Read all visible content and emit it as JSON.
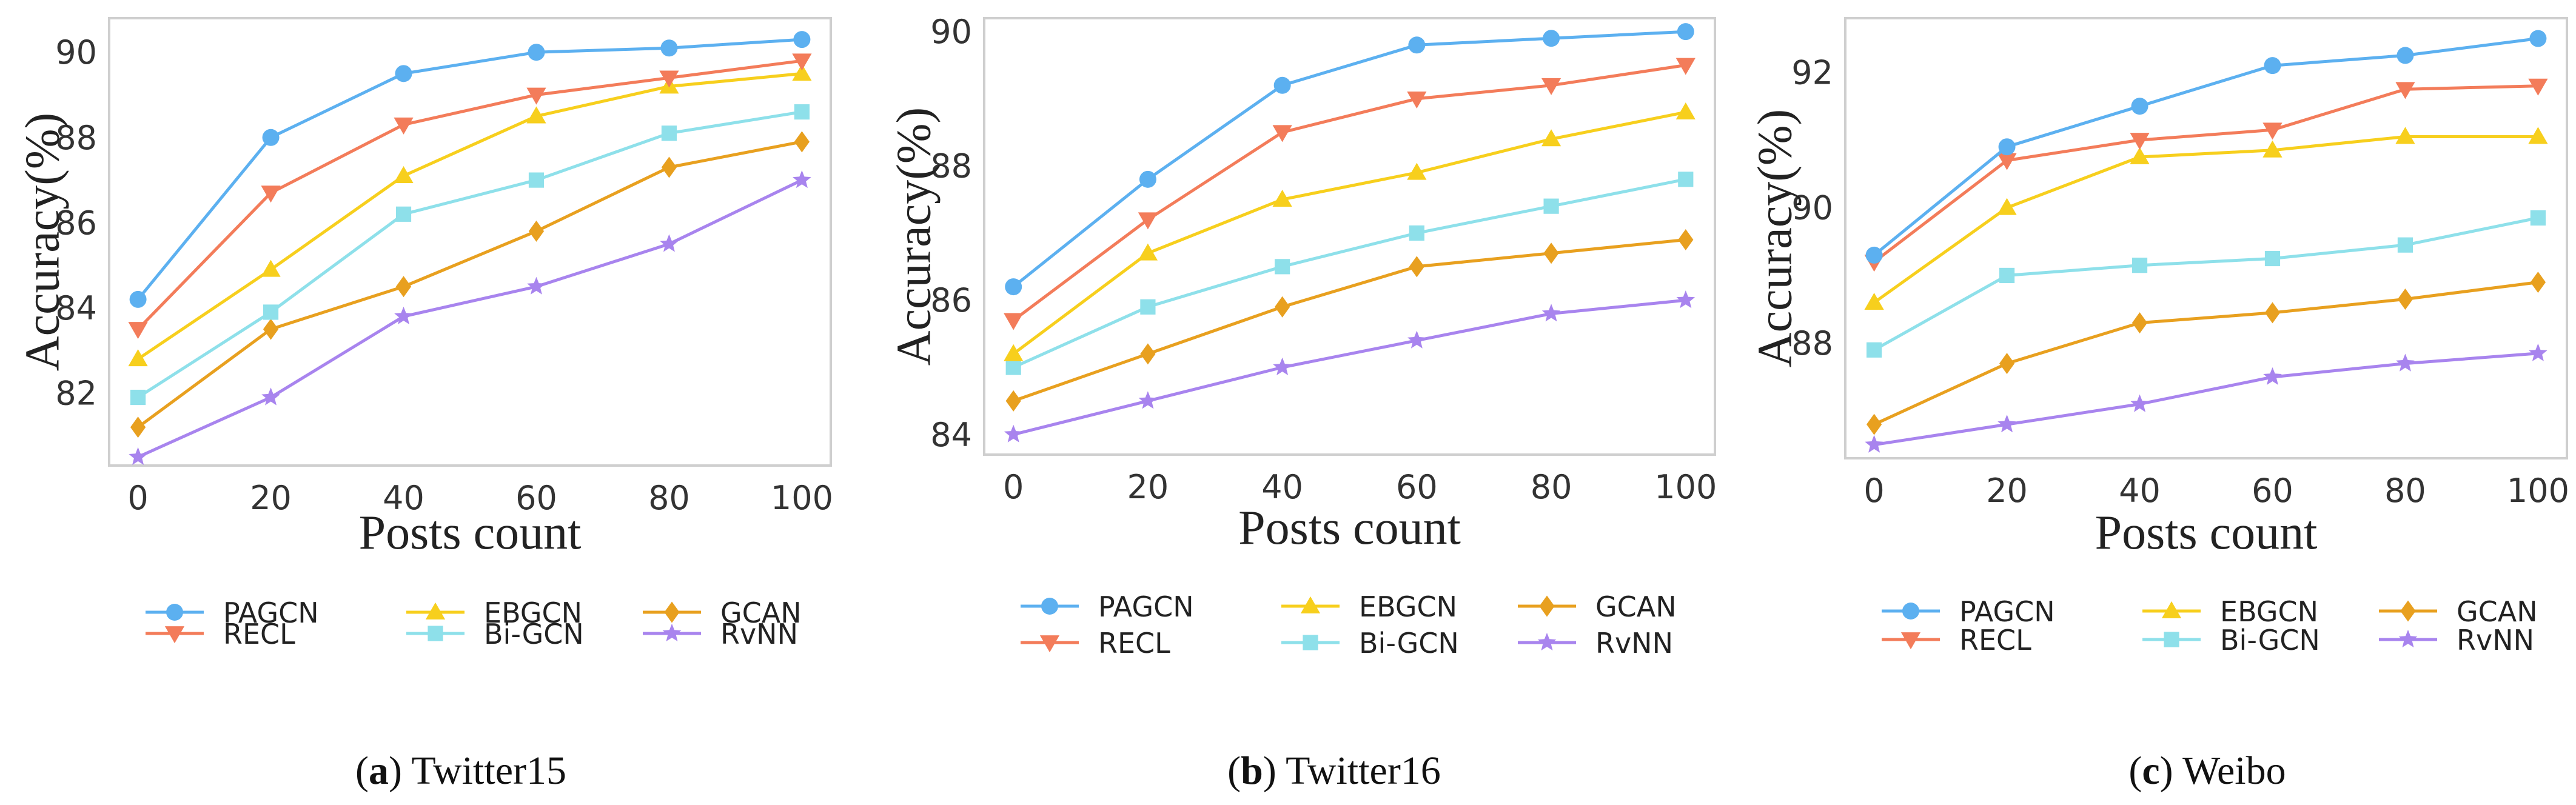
{
  "colors": {
    "PAGCN": "#5cb0f0",
    "RECL": "#f37c5a",
    "EBGCN": "#f7cf1d",
    "Bi-GCN": "#8ee0ea",
    "GCAN": "#e8a01f",
    "RvNN": "#a884ee"
  },
  "markers": {
    "PAGCN": "circle",
    "RECL": "triangle-down",
    "EBGCN": "triangle-up",
    "Bi-GCN": "square",
    "GCAN": "diamond",
    "RvNN": "star"
  },
  "chart_data": [
    {
      "type": "line",
      "caption_letter": "a",
      "caption_name": "Twitter15",
      "xlabel": "Posts count",
      "ylabel": "Accuracy(%)",
      "x": [
        0,
        20,
        40,
        60,
        80,
        100
      ],
      "xticks": [
        "0",
        "20",
        "40",
        "60",
        "80",
        "100"
      ],
      "ylim": [
        80.3,
        90.8
      ],
      "yticks": [
        82,
        84,
        86,
        88,
        90
      ],
      "ytick_labels": [
        "82",
        "84",
        "86",
        "88",
        "90"
      ],
      "legend": [
        "PAGCN",
        "EBGCN",
        "GCAN",
        "RECL",
        "Bi-GCN",
        "RvNN"
      ],
      "series": [
        {
          "name": "PAGCN",
          "values": [
            84.2,
            88.0,
            89.5,
            90.0,
            90.1,
            90.3
          ]
        },
        {
          "name": "RECL",
          "values": [
            83.5,
            86.7,
            88.3,
            89.0,
            89.4,
            89.8
          ]
        },
        {
          "name": "EBGCN",
          "values": [
            82.8,
            84.9,
            87.1,
            88.5,
            89.2,
            89.5
          ]
        },
        {
          "name": "Bi-GCN",
          "values": [
            81.9,
            83.9,
            86.2,
            87.0,
            88.1,
            88.6
          ]
        },
        {
          "name": "GCAN",
          "values": [
            81.2,
            83.5,
            84.5,
            85.8,
            87.3,
            87.9
          ]
        },
        {
          "name": "RvNN",
          "values": [
            80.5,
            81.9,
            83.8,
            84.5,
            85.5,
            87.0
          ]
        }
      ]
    },
    {
      "type": "line",
      "caption_letter": "b",
      "caption_name": "Twitter16",
      "xlabel": "Posts count",
      "ylabel": "Accuracy(%)",
      "x": [
        0,
        20,
        40,
        60,
        80,
        100
      ],
      "xticks": [
        "0",
        "20",
        "40",
        "60",
        "80",
        "100"
      ],
      "ylim": [
        83.7,
        90.2
      ],
      "yticks": [
        84,
        86,
        88,
        90
      ],
      "ytick_labels": [
        "84",
        "86",
        "88",
        "90"
      ],
      "legend": [
        "PAGCN",
        "EBGCN",
        "GCAN",
        "RECL",
        "Bi-GCN",
        "RvNN"
      ],
      "series": [
        {
          "name": "PAGCN",
          "values": [
            86.2,
            87.8,
            89.2,
            89.8,
            89.9,
            90.0
          ]
        },
        {
          "name": "RECL",
          "values": [
            85.7,
            87.2,
            88.5,
            89.0,
            89.2,
            89.5
          ]
        },
        {
          "name": "EBGCN",
          "values": [
            85.2,
            86.7,
            87.5,
            87.9,
            88.4,
            88.8
          ]
        },
        {
          "name": "Bi-GCN",
          "values": [
            85.0,
            85.9,
            86.5,
            87.0,
            87.4,
            87.8
          ]
        },
        {
          "name": "GCAN",
          "values": [
            84.5,
            85.2,
            85.9,
            86.5,
            86.7,
            86.9
          ]
        },
        {
          "name": "RvNN",
          "values": [
            84.0,
            84.5,
            85.0,
            85.4,
            85.8,
            86.0
          ]
        }
      ]
    },
    {
      "type": "line",
      "caption_letter": "c",
      "caption_name": "Weibo",
      "xlabel": "Posts count",
      "ylabel": "Accuracy(%)",
      "x": [
        0,
        20,
        40,
        60,
        80,
        100
      ],
      "xticks": [
        "0",
        "20",
        "40",
        "60",
        "80",
        "100"
      ],
      "ylim": [
        86.3,
        92.8
      ],
      "yticks": [
        88,
        90,
        92
      ],
      "ytick_labels": [
        "88",
        "90",
        "92"
      ],
      "legend": [
        "PAGCN",
        "EBGCN",
        "GCAN",
        "RECL",
        "Bi-GCN",
        "RvNN"
      ],
      "series": [
        {
          "name": "PAGCN",
          "values": [
            89.3,
            90.9,
            91.5,
            92.1,
            92.25,
            92.5
          ]
        },
        {
          "name": "RECL",
          "values": [
            89.2,
            90.7,
            91.0,
            91.15,
            91.75,
            91.8
          ]
        },
        {
          "name": "EBGCN",
          "values": [
            88.6,
            90.0,
            90.75,
            90.85,
            91.05,
            91.05
          ]
        },
        {
          "name": "Bi-GCN",
          "values": [
            87.9,
            89.0,
            89.15,
            89.25,
            89.45,
            89.85
          ]
        },
        {
          "name": "GCAN",
          "values": [
            86.8,
            87.7,
            88.3,
            88.45,
            88.65,
            88.9
          ]
        },
        {
          "name": "RvNN",
          "values": [
            86.5,
            86.8,
            87.1,
            87.5,
            87.7,
            87.85
          ]
        }
      ]
    }
  ]
}
